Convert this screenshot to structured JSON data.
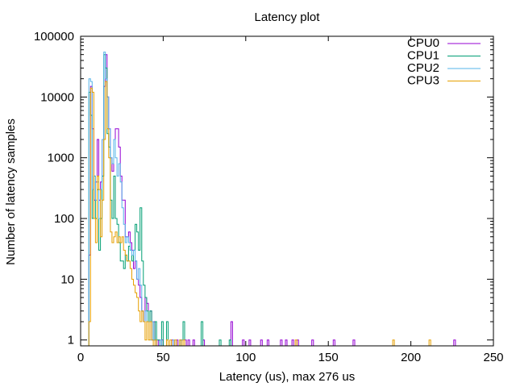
{
  "chart_data": {
    "type": "line",
    "title": "Latency plot",
    "xlabel": "Latency (us), max 276 us",
    "ylabel": "Number of latency samples",
    "xlim": [
      0,
      250
    ],
    "ylim": [
      0.8,
      100000
    ],
    "yscale": "log",
    "grid": false,
    "legend_position": "top-right",
    "x_ticks": [
      {
        "value": 0,
        "label": "0"
      },
      {
        "value": 50,
        "label": "50"
      },
      {
        "value": 100,
        "label": "100"
      },
      {
        "value": 150,
        "label": "150"
      },
      {
        "value": 200,
        "label": "200"
      },
      {
        "value": 250,
        "label": "250"
      }
    ],
    "y_ticks": [
      {
        "value": 1,
        "label": "1"
      },
      {
        "value": 10,
        "label": "10"
      },
      {
        "value": 100,
        "label": "100"
      },
      {
        "value": 1000,
        "label": "1000"
      },
      {
        "value": 10000,
        "label": "10000"
      },
      {
        "value": 100000,
        "label": "100000"
      }
    ],
    "series": [
      {
        "name": "CPU0",
        "color": "#9400d3",
        "points": [
          [
            4,
            0
          ],
          [
            5,
            25
          ],
          [
            6,
            15000
          ],
          [
            7,
            3000
          ],
          [
            8,
            200
          ],
          [
            9,
            400
          ],
          [
            10,
            2000
          ],
          [
            11,
            200
          ],
          [
            12,
            400
          ],
          [
            13,
            2000
          ],
          [
            14,
            15000
          ],
          [
            15,
            50000
          ],
          [
            16,
            10000
          ],
          [
            17,
            3000
          ],
          [
            18,
            1000
          ],
          [
            19,
            600
          ],
          [
            20,
            2000
          ],
          [
            21,
            3000
          ],
          [
            22,
            3000
          ],
          [
            23,
            1500
          ],
          [
            24,
            500
          ],
          [
            25,
            200
          ],
          [
            26,
            200
          ],
          [
            27,
            50
          ],
          [
            28,
            50
          ],
          [
            29,
            60
          ],
          [
            30,
            40
          ],
          [
            31,
            30
          ],
          [
            32,
            15
          ],
          [
            33,
            20
          ],
          [
            34,
            10
          ],
          [
            35,
            8
          ],
          [
            36,
            5
          ],
          [
            37,
            3
          ],
          [
            38,
            2
          ],
          [
            39,
            5
          ],
          [
            40,
            4
          ],
          [
            41,
            2
          ],
          [
            42,
            3
          ],
          [
            43,
            1
          ],
          [
            44,
            2
          ],
          [
            45,
            1
          ],
          [
            46,
            0
          ],
          [
            47,
            1
          ],
          [
            48,
            0
          ],
          [
            49,
            1
          ],
          [
            50,
            0
          ],
          [
            55,
            1
          ],
          [
            56,
            0
          ],
          [
            58,
            1
          ],
          [
            59,
            0
          ],
          [
            61,
            1
          ],
          [
            62,
            2
          ],
          [
            63,
            1
          ],
          [
            64,
            0
          ],
          [
            65,
            1
          ],
          [
            66,
            0
          ],
          [
            68,
            1
          ],
          [
            69,
            0
          ],
          [
            74,
            1
          ],
          [
            75,
            0
          ],
          [
            91,
            2
          ],
          [
            92,
            0
          ],
          [
            98,
            1
          ],
          [
            99,
            0
          ],
          [
            102,
            1
          ],
          [
            103,
            0
          ],
          [
            109,
            1
          ],
          [
            110,
            0
          ],
          [
            113,
            1
          ],
          [
            114,
            0
          ],
          [
            121,
            1
          ],
          [
            122,
            0
          ],
          [
            124,
            1
          ],
          [
            125,
            0
          ],
          [
            128,
            1
          ],
          [
            129,
            0
          ],
          [
            131,
            1
          ],
          [
            132,
            0
          ],
          [
            140,
            1
          ],
          [
            141,
            0
          ],
          [
            153,
            1
          ],
          [
            154,
            0
          ],
          [
            165,
            1
          ],
          [
            166,
            0
          ],
          [
            226,
            1
          ],
          [
            227,
            0
          ]
        ]
      },
      {
        "name": "CPU1",
        "color": "#009e73",
        "points": [
          [
            4,
            0
          ],
          [
            5,
            12000
          ],
          [
            6,
            5000
          ],
          [
            7,
            100
          ],
          [
            8,
            500
          ],
          [
            9,
            100
          ],
          [
            10,
            300
          ],
          [
            11,
            30
          ],
          [
            12,
            100
          ],
          [
            13,
            500
          ],
          [
            14,
            50000
          ],
          [
            15,
            30000
          ],
          [
            16,
            2500
          ],
          [
            17,
            1500
          ],
          [
            18,
            200
          ],
          [
            19,
            100
          ],
          [
            20,
            500
          ],
          [
            21,
            100
          ],
          [
            22,
            80
          ],
          [
            23,
            40
          ],
          [
            24,
            20
          ],
          [
            25,
            20
          ],
          [
            26,
            15
          ],
          [
            27,
            25
          ],
          [
            28,
            20
          ],
          [
            29,
            35
          ],
          [
            30,
            30
          ],
          [
            31,
            20
          ],
          [
            32,
            30
          ],
          [
            33,
            80
          ],
          [
            34,
            60
          ],
          [
            35,
            30
          ],
          [
            36,
            150
          ],
          [
            37,
            20
          ],
          [
            38,
            8
          ],
          [
            39,
            5
          ],
          [
            40,
            3
          ],
          [
            41,
            2
          ],
          [
            42,
            3
          ],
          [
            43,
            2
          ],
          [
            44,
            1
          ],
          [
            45,
            2
          ],
          [
            46,
            1
          ],
          [
            47,
            1
          ],
          [
            48,
            0
          ],
          [
            49,
            2
          ],
          [
            50,
            0
          ],
          [
            52,
            2
          ],
          [
            53,
            0
          ],
          [
            60,
            1
          ],
          [
            61,
            0
          ],
          [
            62,
            2
          ],
          [
            63,
            0
          ],
          [
            73,
            2
          ],
          [
            74,
            0
          ],
          [
            84,
            1
          ],
          [
            85,
            0
          ],
          [
            90,
            1
          ],
          [
            91,
            0
          ]
        ]
      },
      {
        "name": "CPU2",
        "color": "#56b4e9",
        "points": [
          [
            4,
            0
          ],
          [
            5,
            20000
          ],
          [
            6,
            18000
          ],
          [
            7,
            300
          ],
          [
            8,
            500
          ],
          [
            9,
            200
          ],
          [
            10,
            400
          ],
          [
            11,
            100
          ],
          [
            12,
            300
          ],
          [
            13,
            2000
          ],
          [
            14,
            55000
          ],
          [
            15,
            20000
          ],
          [
            16,
            10000
          ],
          [
            17,
            3000
          ],
          [
            18,
            1000
          ],
          [
            19,
            800
          ],
          [
            20,
            2000
          ],
          [
            21,
            1000
          ],
          [
            22,
            500
          ],
          [
            23,
            800
          ],
          [
            24,
            400
          ],
          [
            25,
            150
          ],
          [
            26,
            80
          ],
          [
            27,
            40
          ],
          [
            28,
            50
          ],
          [
            29,
            40
          ],
          [
            30,
            30
          ],
          [
            31,
            25
          ],
          [
            32,
            30
          ],
          [
            33,
            20
          ],
          [
            34,
            10
          ],
          [
            35,
            15
          ],
          [
            36,
            8
          ],
          [
            37,
            3
          ],
          [
            38,
            2
          ],
          [
            39,
            3
          ],
          [
            40,
            2
          ],
          [
            41,
            2
          ],
          [
            42,
            1
          ],
          [
            43,
            2
          ],
          [
            44,
            1
          ],
          [
            45,
            1
          ],
          [
            46,
            0
          ],
          [
            48,
            1
          ],
          [
            49,
            0
          ],
          [
            52,
            1
          ],
          [
            53,
            0
          ],
          [
            56,
            1
          ],
          [
            57,
            0
          ],
          [
            61,
            1
          ],
          [
            62,
            0
          ]
        ]
      },
      {
        "name": "CPU3",
        "color": "#e69f00",
        "points": [
          [
            4,
            0
          ],
          [
            5,
            2
          ],
          [
            6,
            14000
          ],
          [
            7,
            12000
          ],
          [
            8,
            100
          ],
          [
            9,
            40
          ],
          [
            10,
            500
          ],
          [
            11,
            300
          ],
          [
            12,
            50
          ],
          [
            13,
            200
          ],
          [
            14,
            2000
          ],
          [
            15,
            18000
          ],
          [
            16,
            3000
          ],
          [
            17,
            1000
          ],
          [
            18,
            60
          ],
          [
            19,
            40
          ],
          [
            20,
            50
          ],
          [
            21,
            60
          ],
          [
            22,
            40
          ],
          [
            23,
            50
          ],
          [
            24,
            40
          ],
          [
            25,
            50
          ],
          [
            26,
            30
          ],
          [
            27,
            25
          ],
          [
            28,
            20
          ],
          [
            29,
            20
          ],
          [
            30,
            15
          ],
          [
            31,
            10
          ],
          [
            32,
            8
          ],
          [
            33,
            6
          ],
          [
            34,
            5
          ],
          [
            35,
            3
          ],
          [
            36,
            2
          ],
          [
            37,
            3
          ],
          [
            38,
            2
          ],
          [
            39,
            1
          ],
          [
            40,
            2
          ],
          [
            41,
            1
          ],
          [
            42,
            2
          ],
          [
            43,
            1
          ],
          [
            44,
            0
          ],
          [
            45,
            1
          ],
          [
            46,
            0
          ],
          [
            52,
            1
          ],
          [
            53,
            0
          ],
          [
            54,
            1
          ],
          [
            55,
            0
          ],
          [
            57,
            1
          ],
          [
            58,
            0
          ],
          [
            60,
            1
          ],
          [
            61,
            0
          ],
          [
            62,
            1
          ],
          [
            63,
            0
          ],
          [
            130,
            1
          ],
          [
            131,
            0
          ],
          [
            189,
            1
          ],
          [
            190,
            0
          ],
          [
            211,
            1
          ],
          [
            212,
            0
          ]
        ]
      }
    ]
  }
}
